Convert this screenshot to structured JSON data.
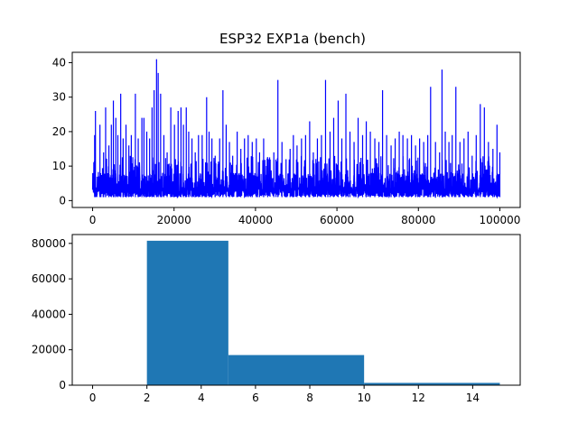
{
  "colors": {
    "line": "#0000ff",
    "bar": "#1f77b4",
    "axes": "#000000",
    "background": "#ffffff"
  },
  "chart_data": [
    {
      "type": "line",
      "title": "ESP32 EXP1a  (bench)",
      "xlabel": "",
      "ylabel": "",
      "xlim": [
        -5000,
        105000
      ],
      "ylim": [
        -2,
        43
      ],
      "grid": false,
      "x_ticks": [
        0,
        20000,
        40000,
        60000,
        80000,
        100000
      ],
      "x_tick_labels": [
        "0",
        "20000",
        "40000",
        "60000",
        "80000",
        "100000"
      ],
      "y_ticks": [
        0,
        10,
        20,
        30,
        40
      ],
      "y_tick_labels": [
        "0",
        "10",
        "20",
        "30",
        "40"
      ],
      "series": [
        {
          "baseline": {
            "x_range": [
              0,
              100000
            ],
            "y_range": [
              1,
              13
            ]
          },
          "peaks": [
            {
              "x": 500,
              "y": 19
            },
            {
              "x": 700,
              "y": 26
            },
            {
              "x": 1800,
              "y": 22
            },
            {
              "x": 2700,
              "y": 14
            },
            {
              "x": 3200,
              "y": 27
            },
            {
              "x": 4000,
              "y": 16
            },
            {
              "x": 4600,
              "y": 22
            },
            {
              "x": 5100,
              "y": 29
            },
            {
              "x": 5700,
              "y": 24
            },
            {
              "x": 6200,
              "y": 19
            },
            {
              "x": 6900,
              "y": 31
            },
            {
              "x": 7500,
              "y": 18
            },
            {
              "x": 8200,
              "y": 22
            },
            {
              "x": 8900,
              "y": 16
            },
            {
              "x": 9500,
              "y": 19
            },
            {
              "x": 10500,
              "y": 31
            },
            {
              "x": 11200,
              "y": 18
            },
            {
              "x": 12100,
              "y": 24
            },
            {
              "x": 12600,
              "y": 24
            },
            {
              "x": 13300,
              "y": 20
            },
            {
              "x": 14000,
              "y": 18
            },
            {
              "x": 14600,
              "y": 27
            },
            {
              "x": 15100,
              "y": 32
            },
            {
              "x": 15700,
              "y": 41
            },
            {
              "x": 16100,
              "y": 37
            },
            {
              "x": 16700,
              "y": 31
            },
            {
              "x": 17500,
              "y": 19
            },
            {
              "x": 18300,
              "y": 14
            },
            {
              "x": 19200,
              "y": 27
            },
            {
              "x": 20100,
              "y": 22
            },
            {
              "x": 21000,
              "y": 26
            },
            {
              "x": 21700,
              "y": 27
            },
            {
              "x": 22300,
              "y": 22
            },
            {
              "x": 23000,
              "y": 27
            },
            {
              "x": 23600,
              "y": 20
            },
            {
              "x": 24400,
              "y": 18
            },
            {
              "x": 25200,
              "y": 14
            },
            {
              "x": 26000,
              "y": 19
            },
            {
              "x": 26900,
              "y": 19
            },
            {
              "x": 28000,
              "y": 30
            },
            {
              "x": 28600,
              "y": 20
            },
            {
              "x": 29300,
              "y": 18
            },
            {
              "x": 30100,
              "y": 13
            },
            {
              "x": 31200,
              "y": 18
            },
            {
              "x": 32000,
              "y": 32
            },
            {
              "x": 32800,
              "y": 22
            },
            {
              "x": 33600,
              "y": 17
            },
            {
              "x": 34400,
              "y": 13
            },
            {
              "x": 35500,
              "y": 20
            },
            {
              "x": 36400,
              "y": 15
            },
            {
              "x": 37300,
              "y": 18
            },
            {
              "x": 38200,
              "y": 19
            },
            {
              "x": 39200,
              "y": 17
            },
            {
              "x": 40200,
              "y": 18
            },
            {
              "x": 41000,
              "y": 14
            },
            {
              "x": 42000,
              "y": 18
            },
            {
              "x": 43000,
              "y": 12
            },
            {
              "x": 44500,
              "y": 14
            },
            {
              "x": 45500,
              "y": 35
            },
            {
              "x": 46500,
              "y": 17
            },
            {
              "x": 47500,
              "y": 12
            },
            {
              "x": 48500,
              "y": 15
            },
            {
              "x": 49300,
              "y": 19
            },
            {
              "x": 50200,
              "y": 16
            },
            {
              "x": 51300,
              "y": 18
            },
            {
              "x": 52300,
              "y": 19
            },
            {
              "x": 53300,
              "y": 23
            },
            {
              "x": 54200,
              "y": 14
            },
            {
              "x": 55200,
              "y": 18
            },
            {
              "x": 56200,
              "y": 19
            },
            {
              "x": 57200,
              "y": 35
            },
            {
              "x": 58300,
              "y": 20
            },
            {
              "x": 59200,
              "y": 24
            },
            {
              "x": 60300,
              "y": 29
            },
            {
              "x": 61200,
              "y": 18
            },
            {
              "x": 62200,
              "y": 31
            },
            {
              "x": 63200,
              "y": 20
            },
            {
              "x": 64200,
              "y": 17
            },
            {
              "x": 65200,
              "y": 24
            },
            {
              "x": 66300,
              "y": 19
            },
            {
              "x": 67200,
              "y": 23
            },
            {
              "x": 68200,
              "y": 20
            },
            {
              "x": 69300,
              "y": 18
            },
            {
              "x": 70300,
              "y": 17
            },
            {
              "x": 71200,
              "y": 32
            },
            {
              "x": 72200,
              "y": 19
            },
            {
              "x": 73300,
              "y": 16
            },
            {
              "x": 74300,
              "y": 18
            },
            {
              "x": 75300,
              "y": 20
            },
            {
              "x": 76200,
              "y": 19
            },
            {
              "x": 77300,
              "y": 18
            },
            {
              "x": 78300,
              "y": 19
            },
            {
              "x": 79300,
              "y": 16
            },
            {
              "x": 80300,
              "y": 18
            },
            {
              "x": 81300,
              "y": 17
            },
            {
              "x": 82300,
              "y": 19
            },
            {
              "x": 83000,
              "y": 33
            },
            {
              "x": 84200,
              "y": 17
            },
            {
              "x": 85200,
              "y": 14
            },
            {
              "x": 85800,
              "y": 38
            },
            {
              "x": 86600,
              "y": 20
            },
            {
              "x": 87500,
              "y": 17
            },
            {
              "x": 88300,
              "y": 19
            },
            {
              "x": 89200,
              "y": 33
            },
            {
              "x": 90200,
              "y": 17
            },
            {
              "x": 91200,
              "y": 18
            },
            {
              "x": 92200,
              "y": 20
            },
            {
              "x": 93200,
              "y": 13
            },
            {
              "x": 94200,
              "y": 19
            },
            {
              "x": 95200,
              "y": 28
            },
            {
              "x": 96200,
              "y": 27
            },
            {
              "x": 97200,
              "y": 17
            },
            {
              "x": 98300,
              "y": 15
            },
            {
              "x": 99300,
              "y": 22
            },
            {
              "x": 100000,
              "y": 14
            }
          ]
        }
      ]
    },
    {
      "type": "histogram",
      "title": "",
      "xlabel": "",
      "ylabel": "",
      "xlim": [
        -0.75,
        15.75
      ],
      "ylim": [
        0,
        85000
      ],
      "grid": false,
      "x_ticks": [
        0,
        2,
        4,
        6,
        8,
        10,
        12,
        14
      ],
      "x_tick_labels": [
        "0",
        "2",
        "4",
        "6",
        "8",
        "10",
        "12",
        "14"
      ],
      "y_ticks": [
        0,
        20000,
        40000,
        60000,
        80000
      ],
      "y_tick_labels": [
        "0",
        "20000",
        "40000",
        "60000",
        "80000"
      ],
      "bins": [
        {
          "x0": 0,
          "x1": 1,
          "count": 0
        },
        {
          "x0": 1,
          "x1": 2,
          "count": 200
        },
        {
          "x0": 2,
          "x1": 5,
          "count": 81500
        },
        {
          "x0": 5,
          "x1": 10,
          "count": 17000
        },
        {
          "x0": 10,
          "x1": 15,
          "count": 1300
        }
      ]
    }
  ]
}
